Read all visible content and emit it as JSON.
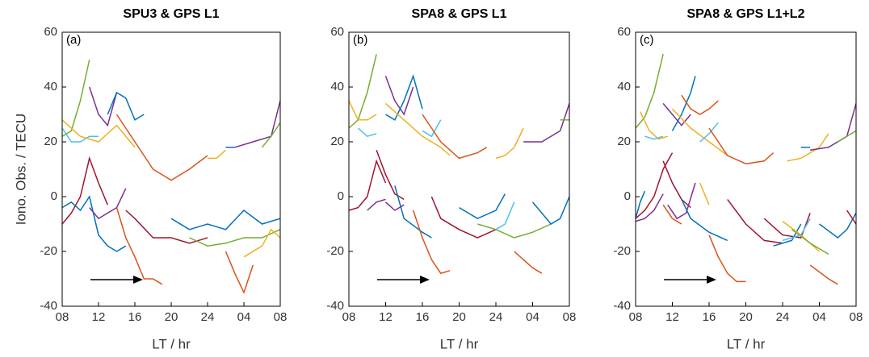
{
  "chart_data": [
    {
      "type": "line",
      "title": "SPU3 & GPS L1",
      "panel_label": "(a)",
      "xlabel": "LT / hr",
      "ylabel": "Iono. Obs. / TECU",
      "xlim": [
        8,
        32
      ],
      "ylim": [
        -40,
        60
      ],
      "xticks": [
        {
          "value": 8,
          "label": "08"
        },
        12,
        16,
        20,
        24,
        {
          "value": 28,
          "label": "04"
        },
        {
          "value": 32,
          "label": "08"
        }
      ],
      "yticks": [
        -40,
        -20,
        0,
        20,
        40,
        60
      ],
      "series": [
        {
          "color": "#77ac30",
          "x": [
            8,
            9,
            10,
            11
          ],
          "values": [
            22,
            24,
            35,
            50
          ]
        },
        {
          "color": "#4dbeee",
          "x": [
            8,
            9,
            10,
            11,
            12
          ],
          "values": [
            25,
            20,
            20,
            22,
            22
          ]
        },
        {
          "color": "#edb120",
          "x": [
            8,
            10,
            12,
            14,
            16
          ],
          "values": [
            28,
            22,
            20,
            26,
            18
          ]
        },
        {
          "color": "#7e2f8e",
          "x": [
            11,
            12,
            13,
            14
          ],
          "values": [
            40,
            30,
            26,
            38
          ]
        },
        {
          "color": "#0072bd",
          "x": [
            13,
            14,
            15,
            16,
            17
          ],
          "values": [
            30,
            38,
            36,
            28,
            30
          ]
        },
        {
          "color": "#d95319",
          "x": [
            14,
            16,
            18,
            20,
            22,
            24
          ],
          "values": [
            30,
            20,
            10,
            6,
            10,
            15
          ]
        },
        {
          "color": "#edb120",
          "x": [
            24,
            25,
            26
          ],
          "values": [
            14,
            14,
            17
          ]
        },
        {
          "color": "#0072bd",
          "x": [
            26,
            27
          ],
          "values": [
            18,
            18
          ]
        },
        {
          "color": "#7e2f8e",
          "x": [
            27,
            29,
            31,
            32
          ],
          "values": [
            18,
            20,
            22,
            35
          ]
        },
        {
          "color": "#77ac30",
          "x": [
            30,
            31,
            32
          ],
          "values": [
            18,
            22,
            27
          ]
        },
        {
          "color": "#a2142f",
          "x": [
            8,
            9,
            10,
            11,
            12,
            13
          ],
          "values": [
            -10,
            -6,
            0,
            14,
            5,
            -3
          ]
        },
        {
          "color": "#0072bd",
          "x": [
            8,
            9,
            10,
            11,
            12,
            13,
            14,
            15
          ],
          "values": [
            -4,
            -2,
            -5,
            0,
            -14,
            -18,
            -20,
            -18
          ]
        },
        {
          "color": "#7e2f8e",
          "x": [
            11,
            12,
            13,
            14,
            15
          ],
          "values": [
            -4,
            -8,
            -6,
            -4,
            3
          ]
        },
        {
          "color": "#d95319",
          "x": [
            14,
            15,
            16,
            17,
            18,
            19
          ],
          "values": [
            -4,
            -15,
            -22,
            -30,
            -30,
            -32
          ]
        },
        {
          "color": "#a2142f",
          "x": [
            15,
            16,
            18,
            20,
            22,
            24
          ],
          "values": [
            -5,
            -8,
            -15,
            -15,
            -17,
            -15
          ]
        },
        {
          "color": "#77ac30",
          "x": [
            22,
            24,
            26,
            28,
            30,
            32
          ],
          "values": [
            -15,
            -18,
            -17,
            -15,
            -15,
            -12
          ]
        },
        {
          "color": "#0072bd",
          "x": [
            20,
            22,
            24,
            26,
            28,
            30,
            32
          ],
          "values": [
            -8,
            -12,
            -10,
            -12,
            -5,
            -10,
            -8
          ]
        },
        {
          "color": "#d95319",
          "x": [
            26,
            27,
            28,
            29
          ],
          "values": [
            -20,
            -28,
            -35,
            -25
          ]
        },
        {
          "color": "#edb120",
          "x": [
            28,
            30,
            31,
            32
          ],
          "values": [
            -22,
            -18,
            -12,
            -15
          ]
        }
      ]
    },
    {
      "type": "line",
      "title": "SPA8 & GPS L1",
      "panel_label": "(b)",
      "xlabel": "LT / hr",
      "xlim": [
        8,
        32
      ],
      "ylim": [
        -40,
        60
      ],
      "xticks": [
        {
          "value": 8,
          "label": "08"
        },
        12,
        16,
        20,
        24,
        {
          "value": 28,
          "label": "04"
        },
        {
          "value": 32,
          "label": "08"
        }
      ],
      "yticks": [
        -40,
        -20,
        0,
        20,
        40,
        60
      ],
      "series": [
        {
          "color": "#77ac30",
          "x": [
            8,
            9,
            10,
            11
          ],
          "values": [
            25,
            28,
            38,
            52
          ]
        },
        {
          "color": "#edb120",
          "x": [
            8,
            9,
            10,
            11
          ],
          "values": [
            35,
            28,
            28,
            30
          ]
        },
        {
          "color": "#4dbeee",
          "x": [
            9,
            10,
            11
          ],
          "values": [
            25,
            22,
            23
          ]
        },
        {
          "color": "#7e2f8e",
          "x": [
            12,
            13,
            14,
            15
          ],
          "values": [
            44,
            35,
            30,
            40
          ]
        },
        {
          "color": "#0072bd",
          "x": [
            12,
            13,
            14,
            15,
            16
          ],
          "values": [
            30,
            28,
            35,
            44,
            32
          ]
        },
        {
          "color": "#edb120",
          "x": [
            12,
            14,
            16,
            18,
            19
          ],
          "values": [
            34,
            28,
            22,
            18,
            15
          ]
        },
        {
          "color": "#4dbeee",
          "x": [
            16,
            17,
            18
          ],
          "values": [
            24,
            22,
            28
          ]
        },
        {
          "color": "#d95319",
          "x": [
            16,
            18,
            20,
            22,
            23
          ],
          "values": [
            30,
            20,
            14,
            16,
            18
          ]
        },
        {
          "color": "#edb120",
          "x": [
            24,
            25,
            26,
            27
          ],
          "values": [
            14,
            15,
            18,
            25
          ]
        },
        {
          "color": "#7e2f8e",
          "x": [
            27,
            29,
            31,
            32
          ],
          "values": [
            20,
            20,
            24,
            34
          ]
        },
        {
          "color": "#77ac30",
          "x": [
            31,
            32
          ],
          "values": [
            28,
            28
          ]
        },
        {
          "color": "#a2142f",
          "x": [
            8,
            9,
            10,
            11,
            12
          ],
          "values": [
            -5,
            -4,
            0,
            13,
            5
          ]
        },
        {
          "color": "#7e2f8e",
          "x": [
            10,
            11,
            12
          ],
          "values": [
            -5,
            -2,
            -1
          ]
        },
        {
          "color": "#a2142f",
          "x": [
            11,
            12,
            13,
            14
          ],
          "values": [
            17,
            8,
            1,
            -1
          ]
        },
        {
          "color": "#7e2f8e",
          "x": [
            12,
            13,
            14
          ],
          "values": [
            -2,
            -5,
            -3
          ]
        },
        {
          "color": "#0072bd",
          "x": [
            13,
            14,
            16,
            17
          ],
          "values": [
            4,
            -8,
            -13,
            -15
          ]
        },
        {
          "color": "#d95319",
          "x": [
            15,
            16,
            17,
            18,
            19
          ],
          "values": [
            -5,
            -15,
            -23,
            -28,
            -27
          ]
        },
        {
          "color": "#a2142f",
          "x": [
            17,
            18,
            20,
            22,
            24
          ],
          "values": [
            0,
            -8,
            -12,
            -15,
            -12
          ]
        },
        {
          "color": "#0072bd",
          "x": [
            20,
            22,
            24,
            25
          ],
          "values": [
            -4,
            -8,
            -5,
            1
          ]
        },
        {
          "color": "#77ac30",
          "x": [
            22,
            24,
            26,
            28,
            30
          ],
          "values": [
            -10,
            -12,
            -15,
            -13,
            -10
          ]
        },
        {
          "color": "#4dbeee",
          "x": [
            24,
            25,
            26
          ],
          "values": [
            -12,
            -10,
            -2
          ]
        },
        {
          "color": "#d95319",
          "x": [
            26,
            27,
            28,
            29
          ],
          "values": [
            -20,
            -23,
            -26,
            -28
          ]
        },
        {
          "color": "#0072bd",
          "x": [
            28,
            30,
            31,
            32
          ],
          "values": [
            -2,
            -10,
            -8,
            0
          ]
        }
      ]
    },
    {
      "type": "line",
      "title": "SPA8 & GPS L1+L2",
      "panel_label": "(c)",
      "xlabel": "LT / hr",
      "xlim": [
        8,
        32
      ],
      "ylim": [
        -40,
        60
      ],
      "xticks": [
        {
          "value": 8,
          "label": "08"
        },
        12,
        16,
        20,
        24,
        {
          "value": 28,
          "label": "04"
        },
        {
          "value": 32,
          "label": "08"
        }
      ],
      "yticks": [
        -40,
        -20,
        0,
        20,
        40,
        60
      ],
      "series": [
        {
          "color": "#77ac30",
          "x": [
            8,
            9,
            10,
            11
          ],
          "values": [
            25,
            29,
            38,
            52
          ]
        },
        {
          "color": "#edb120",
          "x": [
            8.5,
            9.5,
            10.5,
            11.5
          ],
          "values": [
            31,
            24,
            21,
            22
          ]
        },
        {
          "color": "#4dbeee",
          "x": [
            9,
            10,
            11
          ],
          "values": [
            22,
            21,
            22
          ]
        },
        {
          "color": "#7e2f8e",
          "x": [
            11,
            12,
            13,
            14
          ],
          "values": [
            34,
            30,
            26,
            30
          ]
        },
        {
          "color": "#0072bd",
          "x": [
            12,
            13,
            14,
            14.5
          ],
          "values": [
            24,
            30,
            38,
            44
          ]
        },
        {
          "color": "#d95319",
          "x": [
            13,
            14,
            15,
            16,
            17
          ],
          "values": [
            37,
            32,
            30,
            32,
            35
          ]
        },
        {
          "color": "#edb120",
          "x": [
            12,
            14,
            16,
            18
          ],
          "values": [
            32,
            25,
            20,
            15
          ]
        },
        {
          "color": "#4dbeee",
          "x": [
            15,
            16,
            17
          ],
          "values": [
            20,
            23,
            27
          ]
        },
        {
          "color": "#d95319",
          "x": [
            16,
            18,
            20,
            22,
            23
          ],
          "values": [
            25,
            15,
            12,
            13,
            16
          ]
        },
        {
          "color": "#edb120",
          "x": [
            24.5,
            26,
            28,
            29
          ],
          "values": [
            13,
            14,
            18,
            23
          ]
        },
        {
          "color": "#0072bd",
          "x": [
            26,
            27
          ],
          "values": [
            18,
            18
          ]
        },
        {
          "color": "#7e2f8e",
          "x": [
            27,
            29,
            31,
            32
          ],
          "values": [
            17,
            18,
            22,
            34
          ]
        },
        {
          "color": "#77ac30",
          "x": [
            30,
            32
          ],
          "values": [
            20,
            24
          ]
        },
        {
          "color": "#a2142f",
          "x": [
            8,
            9,
            10,
            11,
            12
          ],
          "values": [
            -8,
            -5,
            0,
            10,
            16
          ]
        },
        {
          "color": "#7e2f8e",
          "x": [
            8,
            9,
            10,
            11
          ],
          "values": [
            -9,
            -8,
            -5,
            1
          ]
        },
        {
          "color": "#0072bd",
          "x": [
            8,
            8.5,
            9
          ],
          "values": [
            -8,
            -2,
            2
          ]
        },
        {
          "color": "#a2142f",
          "x": [
            11,
            12,
            13,
            14
          ],
          "values": [
            13,
            5,
            -1,
            -4
          ]
        },
        {
          "color": "#d95319",
          "x": [
            11,
            12,
            13
          ],
          "values": [
            -3,
            -8,
            -10
          ]
        },
        {
          "color": "#7e2f8e",
          "x": [
            11.5,
            12.5,
            13.5,
            14.5
          ],
          "values": [
            -3,
            -8,
            -6,
            5
          ]
        },
        {
          "color": "#edb120",
          "x": [
            15,
            16
          ],
          "values": [
            5,
            -3
          ]
        },
        {
          "color": "#0072bd",
          "x": [
            13,
            14,
            16,
            18
          ],
          "values": [
            -1,
            -8,
            -13,
            -16
          ]
        },
        {
          "color": "#d95319",
          "x": [
            16,
            17,
            18,
            19,
            20
          ],
          "values": [
            -14,
            -22,
            -28,
            -31,
            -31
          ]
        },
        {
          "color": "#a2142f",
          "x": [
            18,
            20,
            22,
            24
          ],
          "values": [
            -1,
            -10,
            -16,
            -17
          ]
        },
        {
          "color": "#a2142f",
          "x": [
            22,
            24,
            26,
            27
          ],
          "values": [
            -8,
            -14,
            -15,
            -6
          ]
        },
        {
          "color": "#0072bd",
          "x": [
            23,
            25,
            26
          ],
          "values": [
            -18,
            -16,
            -10
          ]
        },
        {
          "color": "#edb120",
          "x": [
            24,
            26,
            28
          ],
          "values": [
            -9,
            -14,
            -20
          ]
        },
        {
          "color": "#77ac30",
          "x": [
            25,
            27,
            29
          ],
          "values": [
            -12,
            -17,
            -21
          ]
        },
        {
          "color": "#4dbeee",
          "x": [
            24,
            26,
            27
          ],
          "values": [
            -16,
            -14,
            -8
          ]
        },
        {
          "color": "#d95319",
          "x": [
            27,
            29,
            30
          ],
          "values": [
            -25,
            -30,
            -32
          ]
        },
        {
          "color": "#0072bd",
          "x": [
            28,
            30,
            31,
            32
          ],
          "values": [
            -10,
            -15,
            -12,
            -6
          ]
        },
        {
          "color": "#a2142f",
          "x": [
            31,
            32
          ],
          "values": [
            -5,
            -10
          ]
        }
      ]
    }
  ]
}
